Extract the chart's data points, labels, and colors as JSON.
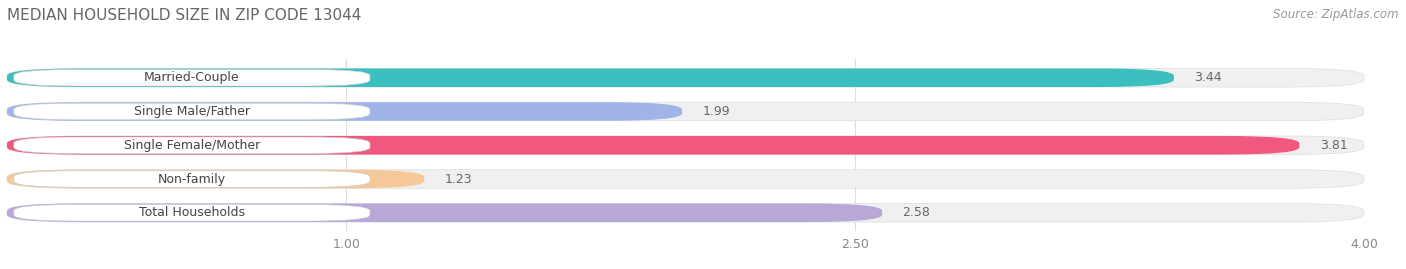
{
  "title": "MEDIAN HOUSEHOLD SIZE IN ZIP CODE 13044",
  "source": "Source: ZipAtlas.com",
  "categories": [
    "Married-Couple",
    "Single Male/Father",
    "Single Female/Mother",
    "Non-family",
    "Total Households"
  ],
  "values": [
    3.44,
    1.99,
    3.81,
    1.23,
    2.58
  ],
  "bar_colors": [
    "#3bbfbf",
    "#a0b4e8",
    "#f05880",
    "#f5c89a",
    "#b8a8d8"
  ],
  "label_bg_color": "#ffffff",
  "row_bg_color": "#f0f0f0",
  "xlim_max": 4.0,
  "xticks": [
    1.0,
    2.5,
    4.0
  ],
  "xtick_labels": [
    "1.00",
    "2.50",
    "4.00"
  ],
  "page_bg_color": "#ffffff",
  "title_fontsize": 11,
  "source_fontsize": 8.5,
  "label_fontsize": 9,
  "value_fontsize": 9
}
